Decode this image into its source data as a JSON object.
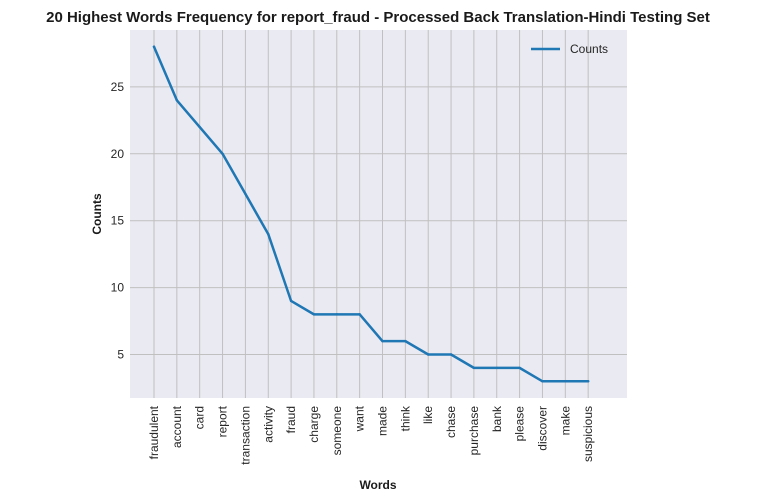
{
  "chart_data": {
    "type": "line",
    "title": "20 Highest Words Frequency for report_fraud - Processed Back Translation-Hindi Testing Set",
    "xlabel": "Words",
    "ylabel": "Counts",
    "categories": [
      "fraudulent",
      "account",
      "card",
      "report",
      "transaction",
      "activity",
      "fraud",
      "charge",
      "someone",
      "want",
      "made",
      "think",
      "like",
      "chase",
      "purchase",
      "bank",
      "please",
      "discover",
      "make",
      "suspicious"
    ],
    "series": [
      {
        "name": "Counts",
        "values": [
          28,
          24,
          22,
          20,
          17,
          14,
          9,
          8,
          8,
          8,
          6,
          6,
          5,
          5,
          4,
          4,
          4,
          3,
          3,
          3
        ],
        "color": "#1f77b4"
      }
    ],
    "yticks": [
      5,
      10,
      15,
      20,
      25
    ],
    "ylim": [
      1.75,
      29.25
    ],
    "grid": true,
    "legend_position": "top-right",
    "colors": {
      "plot_background": "#eaeaf2",
      "grid": "#c0c0c0",
      "line": "#1f77b4"
    }
  }
}
